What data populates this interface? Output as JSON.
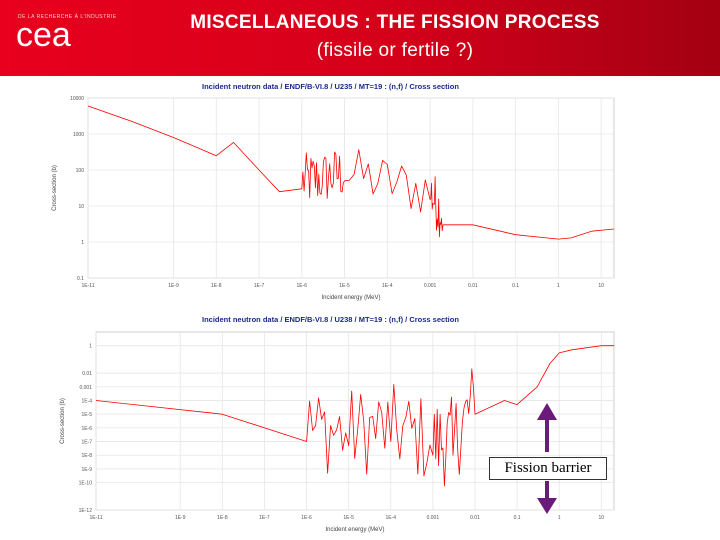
{
  "header": {
    "logo_text": "cea",
    "logo_tagline": "DE LA RECHERCHE À L'INDUSTRIE",
    "title_line1": "MISCELLANEOUS : THE FISSION PROCESS",
    "title_line2": "(fissile or fertile ?)"
  },
  "annotation": {
    "label": "Fission barrier"
  },
  "colors": {
    "header": "#e30613",
    "curve": "#ff0000",
    "arrow": "#6a1a7a"
  },
  "chart_data": [
    {
      "type": "line",
      "title": "Incident neutron data / ENDF/B-VI.8 / U235 / MT=19 : (n,f) / Cross section",
      "xlabel": "Incident energy (MeV)",
      "ylabel": "Cross-section (b)",
      "xscale": "log",
      "yscale": "log",
      "xlim": [
        1e-11,
        20
      ],
      "ylim": [
        0.1,
        10000
      ],
      "xticks": [
        "1E-11",
        "1E-9",
        "1E-8",
        "1E-7",
        "1E-6",
        "1E-5",
        "1E-4",
        "0.001",
        "0.01",
        "0.1",
        "1",
        "10"
      ],
      "yticks": [
        "10000",
        "1000",
        "100",
        "10",
        "1",
        "0.1"
      ],
      "series": [
        {
          "name": "U235 fission",
          "x": [
            1e-11,
            1e-10,
            1e-09,
            1e-08,
            2.53e-08,
            1e-07,
            3e-07,
            1e-06,
            3e-06,
            1e-05,
            0.001,
            0.002,
            0.01,
            0.1,
            1,
            2,
            6,
            20
          ],
          "y": [
            6000,
            2300,
            800,
            250,
            585,
            100,
            25,
            30,
            35,
            50,
            15,
            3,
            3,
            1.6,
            1.2,
            1.3,
            2.0,
            2.3
          ]
        }
      ]
    },
    {
      "type": "line",
      "title": "Incident neutron data / ENDF/B-VI.8 / U238 / MT=19 : (n,f) / Cross section",
      "xlabel": "Incident energy (MeV)",
      "ylabel": "Cross-section (b)",
      "xscale": "log",
      "yscale": "log",
      "xlim": [
        1e-11,
        20
      ],
      "ylim": [
        1e-12,
        10
      ],
      "xticks": [
        "1E-11",
        "1E-9",
        "1E-8",
        "1E-7",
        "1E-6",
        "1E-5",
        "1E-4",
        "0.001",
        "0.01",
        "0.1",
        "1",
        "10"
      ],
      "yticks": [
        "1",
        "0.01",
        "0.001",
        "1E-4",
        "1E-5",
        "1E-6",
        "1E-7",
        "1E-8",
        "1E-9",
        "1E-10",
        "1E-12"
      ],
      "series": [
        {
          "name": "U238 fission",
          "x": [
            1e-11,
            1e-08,
            1e-06,
            1e-05,
            0.0001,
            0.001,
            0.003,
            0.01,
            0.05,
            0.1,
            0.3,
            0.6,
            1,
            2,
            10,
            20
          ],
          "y": [
            0.0001,
            1e-05,
            1e-07,
            5e-08,
            1e-07,
            1e-08,
            1e-08,
            1e-05,
            0.0001,
            5e-05,
            0.001,
            0.05,
            0.3,
            0.5,
            1,
            1
          ]
        }
      ]
    }
  ]
}
